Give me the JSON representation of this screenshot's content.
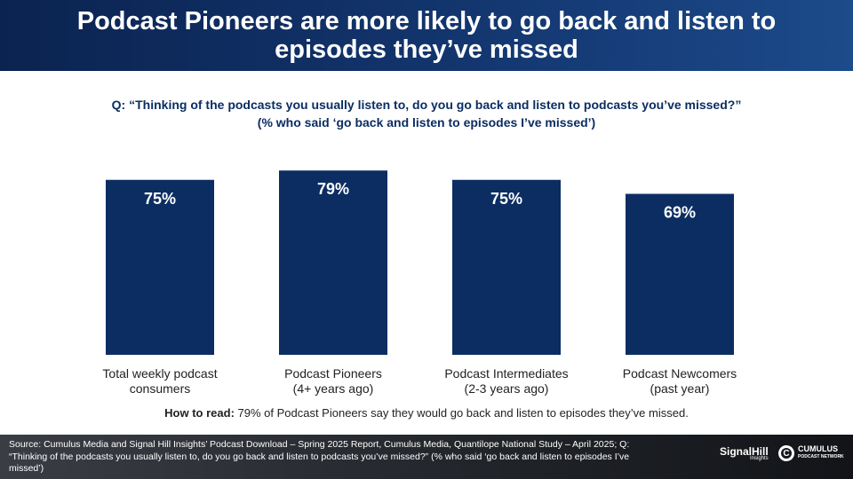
{
  "header": {
    "title": "Podcast Pioneers are more likely to go back and listen to episodes they’ve missed"
  },
  "question": {
    "line1": "Q: “Thinking of the podcasts you usually listen to, do you go back and listen to podcasts you’ve missed?”",
    "line2": "(% who said ‘go back and listen to episodes I’ve missed’)"
  },
  "colors": {
    "bar": "#0b2d62",
    "header": "#0b2350"
  },
  "chart_data": {
    "type": "bar",
    "categories": [
      [
        "Total weekly podcast",
        "consumers"
      ],
      [
        "Podcast Pioneers",
        "(4+ years ago)"
      ],
      [
        "Podcast Intermediates",
        "(2-3 years ago)"
      ],
      [
        "Podcast Newcomers",
        "(past year)"
      ]
    ],
    "values": [
      75,
      79,
      75,
      69
    ],
    "data_labels": [
      "75%",
      "79%",
      "75%",
      "69%"
    ],
    "ylim": [
      0,
      100
    ],
    "grid": false,
    "legend": "none"
  },
  "how_to_read": {
    "label": "How to read:",
    "text": " 79% of Podcast Pioneers say they would go back and listen to episodes they’ve missed."
  },
  "footer": {
    "source": "Source: Cumulus Media and Signal Hill Insights’ Podcast Download – Spring 2025 Report, Cumulus Media, Quantilope National Study – April 2025; Q: “Thinking of the podcasts you usually listen to, do you go back and listen to podcasts you’ve missed?” (% who said ‘go back and listen to episodes I’ve missed’)",
    "logo1": "SignalHill",
    "logo1_sub": "Insights",
    "logo2_mark": "C",
    "logo2": "CUMULUS",
    "logo2_sub": "PODCAST NETWORK"
  }
}
